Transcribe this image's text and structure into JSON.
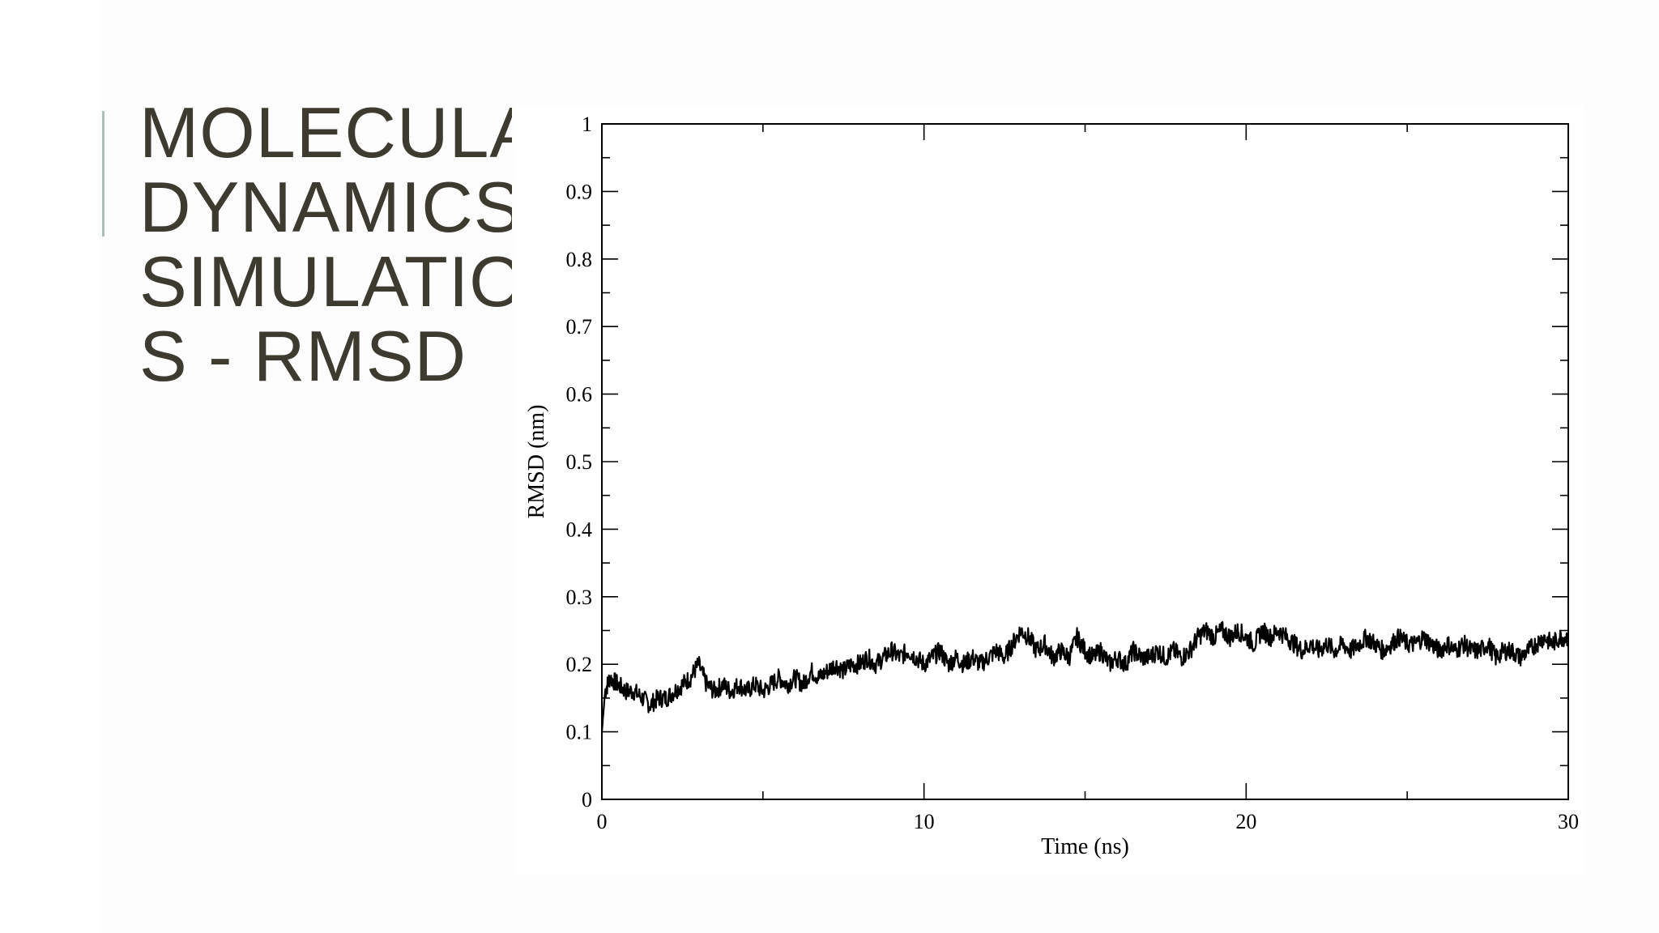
{
  "slide": {
    "title": "MOLECULAR\nDYNAMICS\nSIMULATION\nS - RMSD",
    "accent_color": "#a9c0b4",
    "title_color": "#3d3b2f"
  },
  "chart_data": {
    "type": "line",
    "title": "",
    "xlabel": "Time (ns)",
    "ylabel": "RMSD (nm)",
    "xlim": [
      0,
      30
    ],
    "ylim": [
      0,
      1
    ],
    "xticks": [
      0,
      10,
      20,
      30
    ],
    "yticks": [
      0,
      0.1,
      0.2,
      0.3,
      0.4,
      0.5,
      0.6,
      0.7,
      0.8,
      0.9,
      1
    ],
    "ytick_labels": [
      "0",
      "0.1",
      "0.2",
      "0.3",
      "0.4",
      "0.5",
      "0.6",
      "0.7",
      "0.8",
      "0.9",
      "1"
    ],
    "grid": false,
    "legend": "none",
    "series": [
      {
        "color": "#000000",
        "x": [
          0,
          0.1,
          0.25,
          0.5,
          0.75,
          1.0,
          1.25,
          1.5,
          1.75,
          2.0,
          2.25,
          2.5,
          2.75,
          3.0,
          3.25,
          3.5,
          3.75,
          4.0,
          4.25,
          4.5,
          4.75,
          5.0,
          5.25,
          5.5,
          5.75,
          6.0,
          6.25,
          6.5,
          6.75,
          7.0,
          7.25,
          7.5,
          7.75,
          8.0,
          8.25,
          8.5,
          8.75,
          9.0,
          9.25,
          9.5,
          9.75,
          10.0,
          10.25,
          10.5,
          10.75,
          11.0,
          11.25,
          11.5,
          11.75,
          12.0,
          12.25,
          12.5,
          12.75,
          13.0,
          13.25,
          13.5,
          13.75,
          14.0,
          14.25,
          14.5,
          14.75,
          15.0,
          15.25,
          15.5,
          15.75,
          16.0,
          16.25,
          16.5,
          16.75,
          17.0,
          17.25,
          17.5,
          17.75,
          18.0,
          18.25,
          18.5,
          18.75,
          19.0,
          19.25,
          19.5,
          19.75,
          20.0,
          20.25,
          20.5,
          20.75,
          21.0,
          21.25,
          21.5,
          21.75,
          22.0,
          22.25,
          22.5,
          22.75,
          23.0,
          23.25,
          23.5,
          23.75,
          24.0,
          24.25,
          24.5,
          24.75,
          25.0,
          25.25,
          25.5,
          25.75,
          26.0,
          26.25,
          26.5,
          26.75,
          27.0,
          27.25,
          27.5,
          27.75,
          28.0,
          28.25,
          28.5,
          28.75,
          29.0,
          29.25,
          29.5,
          29.75,
          30.0
        ],
        "y": [
          0.1,
          0.16,
          0.18,
          0.17,
          0.16,
          0.16,
          0.15,
          0.14,
          0.15,
          0.15,
          0.16,
          0.17,
          0.18,
          0.2,
          0.17,
          0.16,
          0.17,
          0.16,
          0.17,
          0.16,
          0.17,
          0.16,
          0.17,
          0.18,
          0.17,
          0.18,
          0.17,
          0.19,
          0.18,
          0.19,
          0.2,
          0.19,
          0.2,
          0.2,
          0.21,
          0.2,
          0.21,
          0.22,
          0.21,
          0.22,
          0.21,
          0.2,
          0.21,
          0.22,
          0.2,
          0.21,
          0.2,
          0.21,
          0.2,
          0.21,
          0.22,
          0.21,
          0.23,
          0.25,
          0.24,
          0.22,
          0.23,
          0.21,
          0.22,
          0.21,
          0.24,
          0.22,
          0.21,
          0.22,
          0.2,
          0.21,
          0.2,
          0.22,
          0.21,
          0.21,
          0.22,
          0.21,
          0.22,
          0.21,
          0.22,
          0.24,
          0.25,
          0.24,
          0.25,
          0.24,
          0.25,
          0.24,
          0.23,
          0.25,
          0.24,
          0.25,
          0.24,
          0.23,
          0.22,
          0.23,
          0.22,
          0.23,
          0.22,
          0.23,
          0.22,
          0.23,
          0.24,
          0.23,
          0.22,
          0.23,
          0.24,
          0.23,
          0.23,
          0.24,
          0.23,
          0.22,
          0.23,
          0.22,
          0.23,
          0.22,
          0.22,
          0.23,
          0.21,
          0.22,
          0.22,
          0.21,
          0.22,
          0.23,
          0.24,
          0.23,
          0.24,
          0.24
        ]
      }
    ]
  }
}
